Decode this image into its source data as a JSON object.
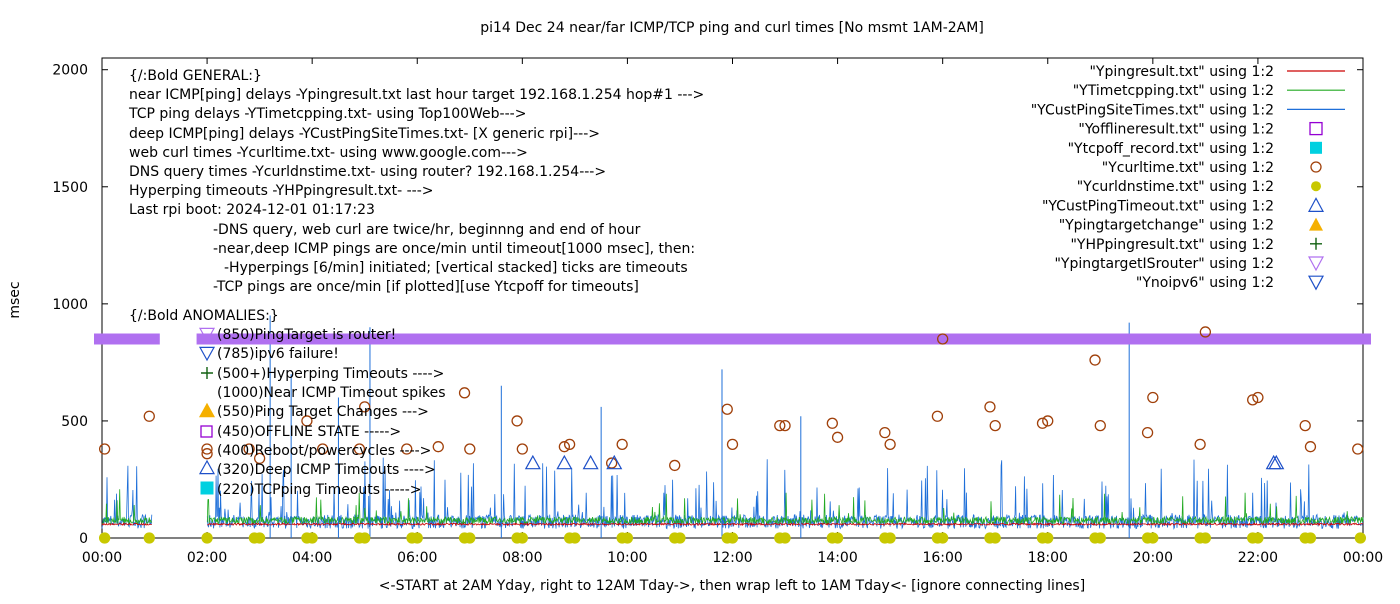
{
  "chart_data": {
    "type": "line",
    "title": "pi14 Dec 24  near/far ICMP/TCP ping and curl times [No msmt 1AM-2AM]",
    "xlabel": "<-START at 2AM Yday, right to 12AM Tday->, then wrap left to 1AM Tday<- [ignore connecting lines]",
    "ylabel": "msec",
    "xlim": [
      0,
      24
    ],
    "ylim": [
      0,
      2050
    ],
    "x_ticks": [
      "00:00",
      "02:00",
      "04:00",
      "06:00",
      "08:00",
      "10:00",
      "12:00",
      "14:00",
      "16:00",
      "18:00",
      "20:00",
      "22:00",
      "00:00"
    ],
    "y_ticks": [
      0,
      500,
      1000,
      1500,
      2000
    ],
    "grid": false,
    "legend_position": "top-right",
    "legend": [
      {
        "label": "\"Ypingresult.txt\" using 1:2",
        "style": "line",
        "color": "#cc0000"
      },
      {
        "label": "\"YTimetcpping.txt\" using 1:2",
        "style": "line",
        "color": "#22aa22"
      },
      {
        "label": "\"YCustPingSiteTimes.txt\" using 1:2",
        "style": "line",
        "color": "#1e6fd9"
      },
      {
        "label": "\"Yofflineresult.txt\" using 1:2",
        "style": "open-square",
        "color": "#9400d3"
      },
      {
        "label": "\"Ytcpoff_record.txt\" using 1:2",
        "style": "filled-square",
        "color": "#00d0e0"
      },
      {
        "label": "\"Ycurltime.txt\" using 1:2",
        "style": "open-circle",
        "color": "#a0400a"
      },
      {
        "label": "\"Ycurldnstime.txt\" using 1:2",
        "style": "filled-circle",
        "color": "#c8c800"
      },
      {
        "label": "\"YCustPingTimeout.txt\" using 1:2",
        "style": "open-triangle-up",
        "color": "#1e50c8"
      },
      {
        "label": "\"Ypingtargetchange\" using 1:2",
        "style": "filled-triangle-up",
        "color": "#f5b000"
      },
      {
        "label": "\"YHPpingresult.txt\" using 1:2",
        "style": "plus",
        "color": "#106010"
      },
      {
        "label": "\"YpingtargetISrouter\" using 1:2",
        "style": "open-triangle-down",
        "color": "#b070f0"
      },
      {
        "label": "\"Ynoipv6\" using 1:2",
        "style": "open-triangle-down",
        "color": "#1e50c8"
      }
    ],
    "annotations": [
      "{/:Bold GENERAL:}",
      "near ICMP[ping] delays -Ypingresult.txt last hour target 192.168.1.254 hop#1 --->",
      "TCP ping delays -YTimetcpping.txt- using Top100Web--->",
      "deep ICMP[ping] delays -YCustPingSiteTimes.txt- [X generic rpi]--->",
      "web curl times -Ycurltime.txt- using www.google.com--->",
      "DNS query times -Ycurldnstime.txt- using router? 192.168.1.254--->",
      "Hyperping timeouts -YHPpingresult.txt- --->",
      "Last rpi boot: 2024-12-01 01:17:23",
      "-DNS query, web curl are twice/hr, beginnng and end of hour",
      "-near,deep ICMP pings are once/min until timeout[1000 msec], then:",
      "-Hyperpings [6/min] initiated; [vertical stacked] ticks are timeouts",
      "-TCP pings are once/min [if plotted][use Ytcpoff for timeouts]",
      "{/:Bold ANOMALIES:}",
      "(850)PingTarget is router!",
      "(785)ipv6 failure!",
      "(500+)Hyperping Timeouts ---->",
      "(1000)Near ICMP Timeout spikes",
      "(550)Ping Target Changes --->",
      "(450)OFFLINE STATE ----->",
      "(400)Reboot/powercycles ---->",
      "(320)Deep ICMP Timeouts ---->",
      "(220)TCPping Timeouts ----->"
    ],
    "series": [
      {
        "name": "\"Ycurltime.txt\" using 1:2",
        "points": [
          [
            0.05,
            380
          ],
          [
            0.9,
            520
          ],
          [
            2.0,
            360
          ],
          [
            2.8,
            380
          ],
          [
            3.0,
            340
          ],
          [
            3.9,
            500
          ],
          [
            4.2,
            380
          ],
          [
            4.9,
            380
          ],
          [
            5.0,
            560
          ],
          [
            5.8,
            380
          ],
          [
            6.4,
            390
          ],
          [
            6.9,
            620
          ],
          [
            7.0,
            380
          ],
          [
            7.9,
            500
          ],
          [
            8.0,
            380
          ],
          [
            8.8,
            390
          ],
          [
            8.9,
            400
          ],
          [
            9.7,
            320
          ],
          [
            9.9,
            400
          ],
          [
            10.9,
            310
          ],
          [
            11.9,
            550
          ],
          [
            12.0,
            400
          ],
          [
            12.9,
            480
          ],
          [
            13.0,
            480
          ],
          [
            13.9,
            490
          ],
          [
            14.0,
            430
          ],
          [
            14.9,
            450
          ],
          [
            15.0,
            400
          ],
          [
            15.9,
            520
          ],
          [
            16.0,
            850
          ],
          [
            16.9,
            560
          ],
          [
            17.0,
            480
          ],
          [
            17.9,
            490
          ],
          [
            18.0,
            500
          ],
          [
            18.9,
            760
          ],
          [
            19.0,
            480
          ],
          [
            19.9,
            450
          ],
          [
            20.0,
            600
          ],
          [
            20.9,
            400
          ],
          [
            21.0,
            880
          ],
          [
            21.9,
            590
          ],
          [
            22.0,
            600
          ],
          [
            22.9,
            480
          ],
          [
            23.0,
            390
          ],
          [
            23.9,
            380
          ]
        ]
      },
      {
        "name": "\"Ycurldnstime.txt\" using 1:2",
        "points": [
          [
            0.05,
            0
          ],
          [
            0.9,
            0
          ],
          [
            2.0,
            0
          ],
          [
            2.9,
            0
          ],
          [
            3.0,
            0
          ],
          [
            3.9,
            0
          ],
          [
            4.0,
            0
          ],
          [
            4.9,
            0
          ],
          [
            5.0,
            0
          ],
          [
            5.9,
            0
          ],
          [
            6.0,
            0
          ],
          [
            6.9,
            0
          ],
          [
            7.0,
            0
          ],
          [
            7.9,
            0
          ],
          [
            8.0,
            0
          ],
          [
            8.9,
            0
          ],
          [
            9.0,
            0
          ],
          [
            9.9,
            0
          ],
          [
            10.0,
            0
          ],
          [
            10.9,
            0
          ],
          [
            11.0,
            0
          ],
          [
            11.9,
            0
          ],
          [
            12.0,
            0
          ],
          [
            12.9,
            0
          ],
          [
            13.0,
            0
          ],
          [
            13.9,
            0
          ],
          [
            14.0,
            0
          ],
          [
            14.9,
            0
          ],
          [
            15.0,
            0
          ],
          [
            15.9,
            0
          ],
          [
            16.0,
            0
          ],
          [
            16.9,
            0
          ],
          [
            17.0,
            0
          ],
          [
            17.9,
            0
          ],
          [
            18.0,
            0
          ],
          [
            18.9,
            0
          ],
          [
            19.0,
            0
          ],
          [
            19.9,
            0
          ],
          [
            20.0,
            0
          ],
          [
            20.9,
            0
          ],
          [
            21.0,
            0
          ],
          [
            21.9,
            0
          ],
          [
            22.0,
            0
          ],
          [
            22.9,
            0
          ],
          [
            23.0,
            0
          ],
          [
            23.95,
            0
          ]
        ]
      },
      {
        "name": "\"YCustPingTimeout.txt\" using 1:2",
        "points": [
          [
            8.2,
            320
          ],
          [
            8.8,
            320
          ],
          [
            9.3,
            320
          ],
          [
            9.75,
            320
          ],
          [
            22.3,
            320
          ],
          [
            22.35,
            320
          ]
        ]
      },
      {
        "name": "\"YpingtargetISrouter\" using 1:2",
        "points": [
          [
            0,
            850
          ],
          [
            0.5,
            850
          ],
          [
            1.1,
            850
          ],
          [
            2.0,
            850
          ],
          [
            5.0,
            850
          ],
          [
            8.0,
            850
          ],
          [
            11.0,
            850
          ],
          [
            14.0,
            850
          ],
          [
            17.0,
            850
          ],
          [
            20.0,
            850
          ],
          [
            23.0,
            850
          ],
          [
            24.0,
            850
          ]
        ]
      }
    ]
  }
}
